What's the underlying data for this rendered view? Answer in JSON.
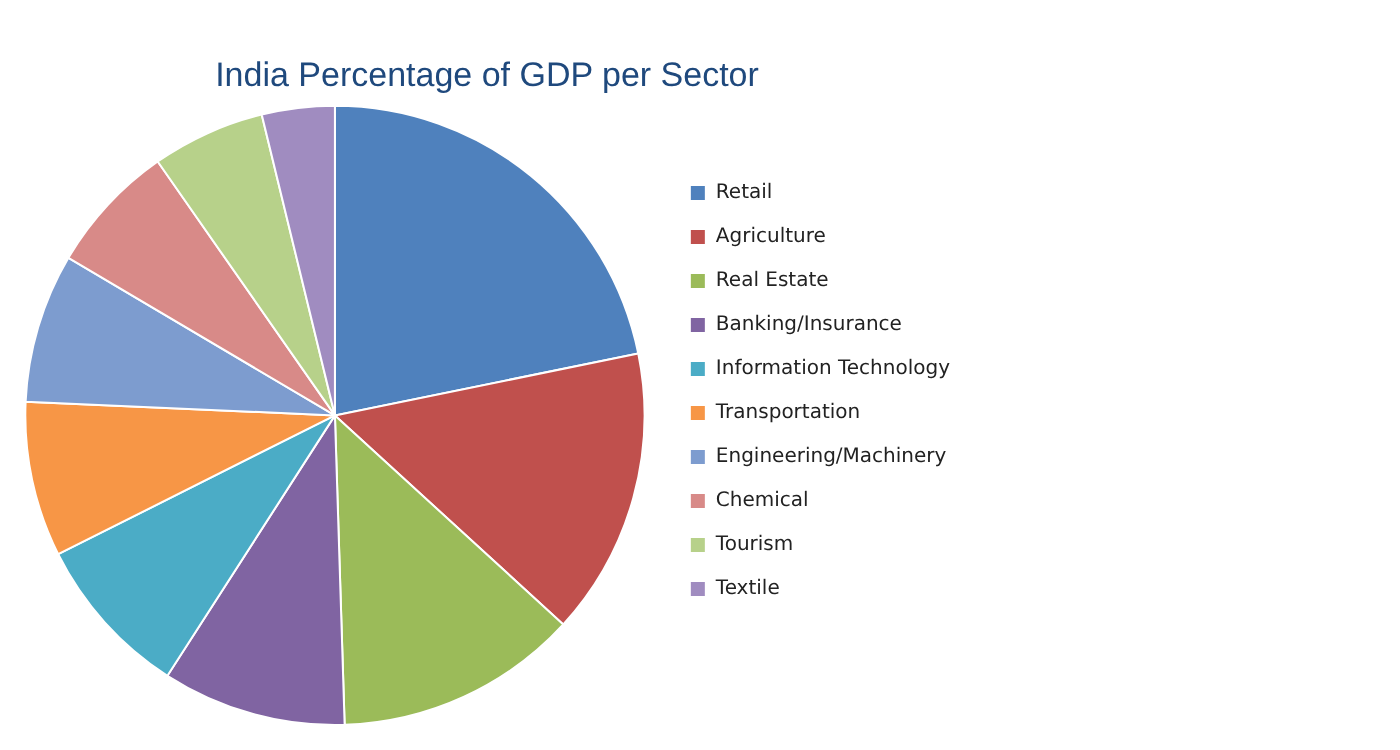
{
  "chart_data": {
    "type": "pie",
    "title": "India Percentage of GDP per Sector",
    "categories": [
      "Retail",
      "Agriculture",
      "Real Estate",
      "Banking/Insurance",
      "Information Technology",
      "Transportation",
      "Engineering/Machinery",
      "Chemical",
      "Tourism",
      "Textile"
    ],
    "values": [
      21.8,
      15.0,
      12.7,
      9.6,
      8.5,
      8.1,
      7.8,
      6.8,
      5.9,
      3.8
    ],
    "colors": [
      "#4f81bd",
      "#c0504d",
      "#9bbb59",
      "#8064a2",
      "#4bacc6",
      "#f79646",
      "#7d9ccf",
      "#d88a88",
      "#b7d18a",
      "#a08cc0"
    ],
    "legend": "right"
  }
}
